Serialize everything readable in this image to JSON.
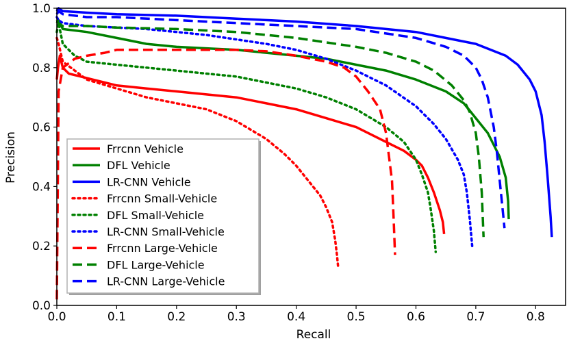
{
  "chart_data": {
    "type": "line",
    "title": "",
    "xlabel": "Recall",
    "ylabel": "Precision",
    "xlim": [
      0.0,
      0.85
    ],
    "ylim": [
      0.0,
      1.0
    ],
    "x_ticks": [
      "0.0",
      "0.1",
      "0.2",
      "0.3",
      "0.4",
      "0.5",
      "0.6",
      "0.7",
      "0.8"
    ],
    "y_ticks": [
      "0.0",
      "0.2",
      "0.4",
      "0.6",
      "0.8",
      "1.0"
    ],
    "grid": false,
    "legend_position": "lower-left",
    "series": [
      {
        "name": "Frrcnn Vehicle",
        "color": "#ff0000",
        "dash": "solid",
        "x": [
          0.0,
          0.002,
          0.005,
          0.01,
          0.02,
          0.04,
          0.06,
          0.08,
          0.1,
          0.15,
          0.2,
          0.25,
          0.3,
          0.35,
          0.4,
          0.45,
          0.5,
          0.55,
          0.58,
          0.6,
          0.61,
          0.62,
          0.63,
          0.64,
          0.645,
          0.647
        ],
        "y": [
          0.76,
          0.8,
          0.84,
          0.8,
          0.78,
          0.77,
          0.76,
          0.75,
          0.74,
          0.73,
          0.72,
          0.71,
          0.7,
          0.68,
          0.66,
          0.63,
          0.6,
          0.55,
          0.52,
          0.49,
          0.47,
          0.43,
          0.38,
          0.32,
          0.28,
          0.24
        ]
      },
      {
        "name": "DFL Vehicle",
        "color": "#008000",
        "dash": "solid",
        "x": [
          0.0,
          0.003,
          0.01,
          0.05,
          0.1,
          0.15,
          0.2,
          0.25,
          0.3,
          0.35,
          0.4,
          0.45,
          0.5,
          0.55,
          0.6,
          0.65,
          0.68,
          0.7,
          0.72,
          0.73,
          0.74,
          0.75,
          0.754,
          0.755
        ],
        "y": [
          0.95,
          0.96,
          0.93,
          0.92,
          0.9,
          0.88,
          0.87,
          0.865,
          0.86,
          0.85,
          0.84,
          0.83,
          0.81,
          0.79,
          0.76,
          0.72,
          0.68,
          0.63,
          0.58,
          0.54,
          0.5,
          0.43,
          0.35,
          0.29
        ]
      },
      {
        "name": "LR-CNN Vehicle",
        "color": "#0000ff",
        "dash": "solid",
        "x": [
          0.0,
          0.003,
          0.01,
          0.05,
          0.1,
          0.2,
          0.3,
          0.4,
          0.5,
          0.6,
          0.7,
          0.75,
          0.77,
          0.79,
          0.8,
          0.81,
          0.815,
          0.82,
          0.825,
          0.827
        ],
        "y": [
          0.99,
          1.0,
          0.99,
          0.985,
          0.98,
          0.975,
          0.965,
          0.955,
          0.94,
          0.92,
          0.88,
          0.84,
          0.81,
          0.76,
          0.72,
          0.64,
          0.55,
          0.43,
          0.3,
          0.23
        ]
      },
      {
        "name": "Frrcnn Small-Vehicle",
        "color": "#ff0000",
        "dash": "dotted",
        "x": [
          0.0,
          0.003,
          0.01,
          0.03,
          0.05,
          0.1,
          0.15,
          0.2,
          0.25,
          0.3,
          0.35,
          0.38,
          0.4,
          0.42,
          0.44,
          0.45,
          0.46,
          0.465,
          0.468,
          0.47
        ],
        "y": [
          0.9,
          0.88,
          0.82,
          0.79,
          0.76,
          0.73,
          0.7,
          0.68,
          0.66,
          0.62,
          0.56,
          0.51,
          0.47,
          0.42,
          0.37,
          0.33,
          0.28,
          0.22,
          0.17,
          0.13
        ]
      },
      {
        "name": "DFL Small-Vehicle",
        "color": "#008000",
        "dash": "dotted",
        "x": [
          0.0,
          0.003,
          0.01,
          0.03,
          0.05,
          0.1,
          0.15,
          0.2,
          0.25,
          0.3,
          0.35,
          0.4,
          0.45,
          0.5,
          0.55,
          0.58,
          0.6,
          0.61,
          0.62,
          0.625,
          0.63,
          0.633
        ],
        "y": [
          0.92,
          0.95,
          0.88,
          0.84,
          0.82,
          0.81,
          0.8,
          0.79,
          0.78,
          0.77,
          0.75,
          0.73,
          0.7,
          0.66,
          0.6,
          0.55,
          0.49,
          0.44,
          0.38,
          0.32,
          0.25,
          0.18
        ]
      },
      {
        "name": "LR-CNN Small-Vehicle",
        "color": "#0000ff",
        "dash": "dotted",
        "x": [
          0.0,
          0.003,
          0.01,
          0.05,
          0.1,
          0.15,
          0.2,
          0.25,
          0.3,
          0.35,
          0.4,
          0.45,
          0.5,
          0.55,
          0.6,
          0.63,
          0.65,
          0.67,
          0.68,
          0.685,
          0.69,
          0.694
        ],
        "y": [
          0.97,
          0.96,
          0.95,
          0.94,
          0.935,
          0.93,
          0.92,
          0.91,
          0.895,
          0.88,
          0.86,
          0.83,
          0.79,
          0.74,
          0.67,
          0.61,
          0.56,
          0.49,
          0.44,
          0.38,
          0.29,
          0.2
        ]
      },
      {
        "name": "Frrcnn Large-Vehicle",
        "color": "#ff0000",
        "dash": "dashed",
        "x": [
          0.0,
          0.003,
          0.01,
          0.03,
          0.05,
          0.08,
          0.1,
          0.15,
          0.2,
          0.25,
          0.3,
          0.35,
          0.4,
          0.45,
          0.48,
          0.5,
          0.52,
          0.54,
          0.55,
          0.56,
          0.563,
          0.565
        ],
        "y": [
          0.02,
          0.72,
          0.8,
          0.83,
          0.84,
          0.85,
          0.86,
          0.86,
          0.86,
          0.86,
          0.86,
          0.855,
          0.84,
          0.82,
          0.8,
          0.77,
          0.72,
          0.66,
          0.58,
          0.42,
          0.28,
          0.17
        ]
      },
      {
        "name": "DFL Large-Vehicle",
        "color": "#008000",
        "dash": "dashed",
        "x": [
          0.0,
          0.003,
          0.01,
          0.05,
          0.1,
          0.2,
          0.3,
          0.4,
          0.5,
          0.55,
          0.6,
          0.63,
          0.66,
          0.68,
          0.69,
          0.7,
          0.705,
          0.71,
          0.713
        ],
        "y": [
          0.96,
          0.95,
          0.94,
          0.94,
          0.935,
          0.93,
          0.92,
          0.9,
          0.87,
          0.85,
          0.82,
          0.79,
          0.74,
          0.69,
          0.65,
          0.58,
          0.5,
          0.38,
          0.23
        ]
      },
      {
        "name": "LR-CNN Large-Vehicle",
        "color": "#0000ff",
        "dash": "dashed",
        "x": [
          0.0,
          0.003,
          0.01,
          0.05,
          0.1,
          0.2,
          0.3,
          0.4,
          0.5,
          0.6,
          0.65,
          0.68,
          0.7,
          0.71,
          0.72,
          0.73,
          0.735,
          0.74,
          0.745,
          0.748
        ],
        "y": [
          0.98,
          0.99,
          0.98,
          0.97,
          0.97,
          0.96,
          0.95,
          0.94,
          0.93,
          0.9,
          0.87,
          0.84,
          0.8,
          0.76,
          0.7,
          0.6,
          0.52,
          0.42,
          0.32,
          0.26
        ]
      }
    ]
  }
}
